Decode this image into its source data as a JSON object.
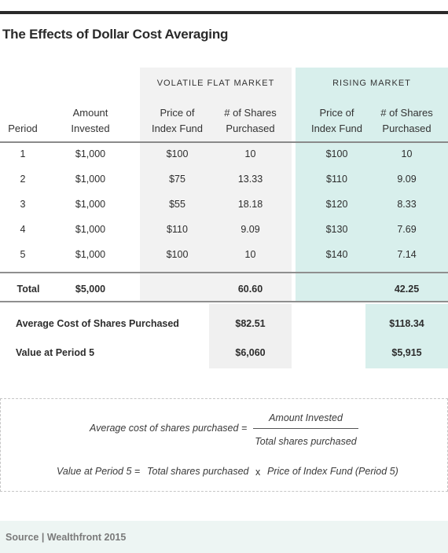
{
  "title": "The Effects of Dollar Cost Averaging",
  "groups": {
    "flat": "VOLATILE FLAT MARKET",
    "rising": "RISING MARKET"
  },
  "headers": {
    "period": "Period",
    "amount_line1": "Amount",
    "amount_line2": "Invested",
    "price_line1": "Price of",
    "price_line2": "Index Fund",
    "shares_line1": "# of Shares",
    "shares_line2": "Purchased"
  },
  "rows": [
    {
      "period": "1",
      "amount": "$1,000",
      "flat_price": "$100",
      "flat_shares": "10",
      "rise_price": "$100",
      "rise_shares": "10"
    },
    {
      "period": "2",
      "amount": "$1,000",
      "flat_price": "$75",
      "flat_shares": "13.33",
      "rise_price": "$110",
      "rise_shares": "9.09"
    },
    {
      "period": "3",
      "amount": "$1,000",
      "flat_price": "$55",
      "flat_shares": "18.18",
      "rise_price": "$120",
      "rise_shares": "8.33"
    },
    {
      "period": "4",
      "amount": "$1,000",
      "flat_price": "$110",
      "flat_shares": "9.09",
      "rise_price": "$130",
      "rise_shares": "7.69"
    },
    {
      "period": "5",
      "amount": "$1,000",
      "flat_price": "$100",
      "flat_shares": "10",
      "rise_price": "$140",
      "rise_shares": "7.14"
    }
  ],
  "total": {
    "label": "Total",
    "amount": "$5,000",
    "flat_shares": "60.60",
    "rise_shares": "42.25"
  },
  "summary": {
    "avg_label": "Average Cost of Shares Purchased",
    "avg_flat": "$82.51",
    "avg_rise": "$118.34",
    "value_label": "Value at Period 5",
    "value_flat": "$6,060",
    "value_rise": "$5,915"
  },
  "formula": {
    "avg_lhs": "Average cost of shares purchased =",
    "avg_num": "Amount Invested",
    "avg_den": "Total shares purchased",
    "val_lhs": "Value at Period 5 =",
    "val_term1": "Total shares purchased",
    "val_op": "x",
    "val_term2": "Price of Index Fund (Period 5)"
  },
  "source": "Source | Wealthfront 2015",
  "colors": {
    "flat_bg": "#f2f2f2",
    "rise_bg": "#d8efec",
    "source_bg": "#edf5f3"
  }
}
